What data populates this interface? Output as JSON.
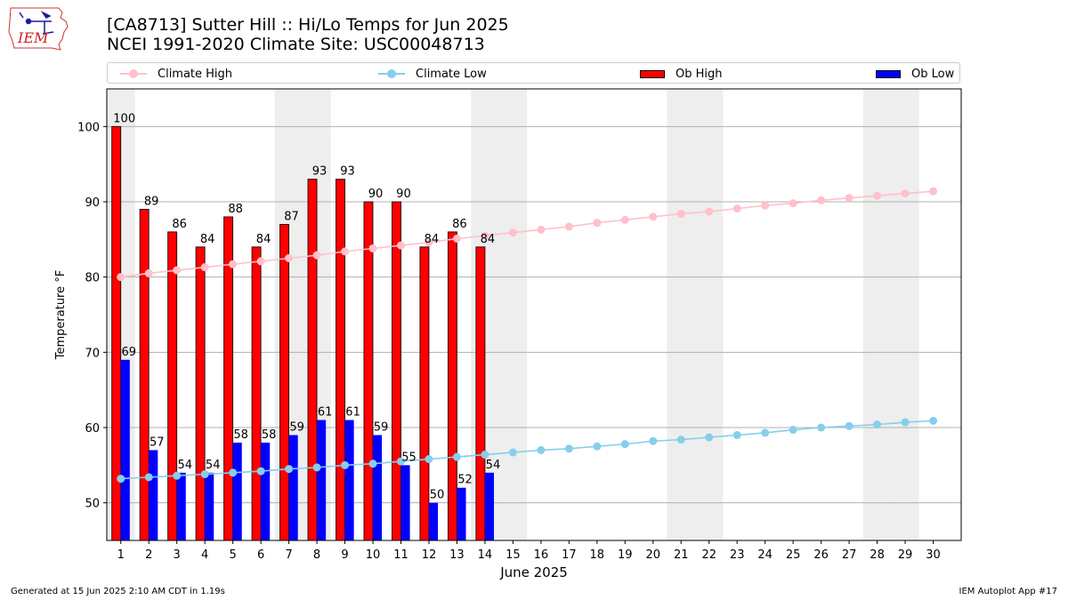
{
  "logo_text": "IEM",
  "header": {
    "title_line1": "[CA8713] Sutter Hill :: Hi/Lo Temps for Jun 2025",
    "title_line2": "NCEI 1991-2020 Climate Site: USC00048713"
  },
  "footer": {
    "generated": "Generated at 15 Jun 2025 2:10 AM CDT in 1.19s",
    "app": "IEM Autoplot App #17"
  },
  "colors": {
    "climate_high": "#ffc0cb",
    "climate_low": "#87ceeb",
    "ob_high": "#ff0000",
    "ob_low": "#0000ff",
    "weekend_shade": "#eeeeee"
  },
  "chart_data": {
    "type": "bar",
    "xlabel": "June 2025",
    "ylabel": "Temperature °F",
    "ylim": [
      45,
      105
    ],
    "yticks": [
      50,
      60,
      70,
      80,
      90,
      100
    ],
    "grid": true,
    "legend_position": "top",
    "days": [
      1,
      2,
      3,
      4,
      5,
      6,
      7,
      8,
      9,
      10,
      11,
      12,
      13,
      14,
      15,
      16,
      17,
      18,
      19,
      20,
      21,
      22,
      23,
      24,
      25,
      26,
      27,
      28,
      29,
      30
    ],
    "shaded_days": [
      1,
      7,
      8,
      14,
      15,
      21,
      22,
      28,
      29
    ],
    "series": [
      {
        "name": "Ob High",
        "kind": "bar",
        "color": "#ff0000",
        "values": [
          100,
          89,
          86,
          84,
          88,
          84,
          87,
          93,
          93,
          90,
          90,
          84,
          86,
          84
        ]
      },
      {
        "name": "Ob Low",
        "kind": "bar",
        "color": "#0000ff",
        "values": [
          69,
          57,
          54,
          54,
          58,
          58,
          59,
          61,
          61,
          59,
          55,
          50,
          52,
          54
        ]
      },
      {
        "name": "Climate High",
        "kind": "line",
        "color": "#ffc0cb",
        "values": [
          80.0,
          80.5,
          80.9,
          81.3,
          81.7,
          82.1,
          82.5,
          82.9,
          83.4,
          83.8,
          84.2,
          84.6,
          85.1,
          85.5,
          85.9,
          86.3,
          86.7,
          87.2,
          87.6,
          88.0,
          88.4,
          88.7,
          89.1,
          89.5,
          89.8,
          90.2,
          90.5,
          90.8,
          91.1,
          91.4
        ]
      },
      {
        "name": "Climate Low",
        "kind": "line",
        "color": "#87ceeb",
        "values": [
          53.2,
          53.4,
          53.6,
          53.8,
          54.0,
          54.2,
          54.5,
          54.7,
          55.0,
          55.2,
          55.5,
          55.8,
          56.1,
          56.4,
          56.7,
          57.0,
          57.2,
          57.5,
          57.8,
          58.2,
          58.4,
          58.7,
          59.0,
          59.3,
          59.7,
          60.0,
          60.2,
          60.4,
          60.7,
          60.9
        ]
      }
    ]
  }
}
